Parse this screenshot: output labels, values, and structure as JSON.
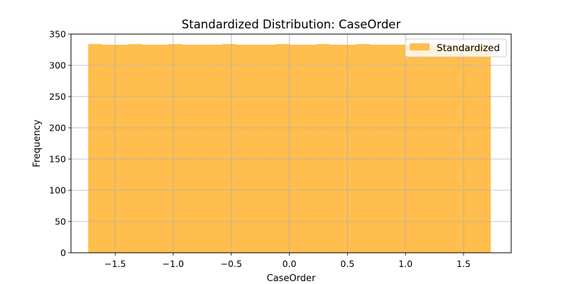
{
  "chart_data": {
    "type": "bar",
    "title": "Standardized Distribution: CaseOrder",
    "xlabel": "CaseOrder",
    "ylabel": "Frequency",
    "xlim": [
      -1.88,
      1.91
    ],
    "ylim": [
      0,
      350
    ],
    "xticks": [
      -1.5,
      -1.0,
      -0.5,
      0.0,
      0.5,
      1.0,
      1.5
    ],
    "xtick_labels": [
      "−1.5",
      "−1.0",
      "−0.5",
      "0.0",
      "0.5",
      "1.0",
      "1.5"
    ],
    "yticks": [
      0,
      50,
      100,
      150,
      200,
      250,
      300,
      350
    ],
    "ytick_labels": [
      "0",
      "50",
      "100",
      "150",
      "200",
      "250",
      "300",
      "350"
    ],
    "bin_start": -1.732,
    "bin_end": 1.732,
    "grid": true,
    "legend_position": "upper right",
    "series": [
      {
        "name": "Standardized",
        "color": "#ffbe4d",
        "values": [
          334,
          333,
          333,
          334,
          333,
          333,
          334,
          333,
          333,
          333,
          334,
          333,
          333,
          333,
          334,
          333,
          333,
          334,
          333,
          333,
          334,
          333,
          333,
          333,
          334,
          333,
          333,
          333,
          333,
          334
        ]
      }
    ]
  }
}
